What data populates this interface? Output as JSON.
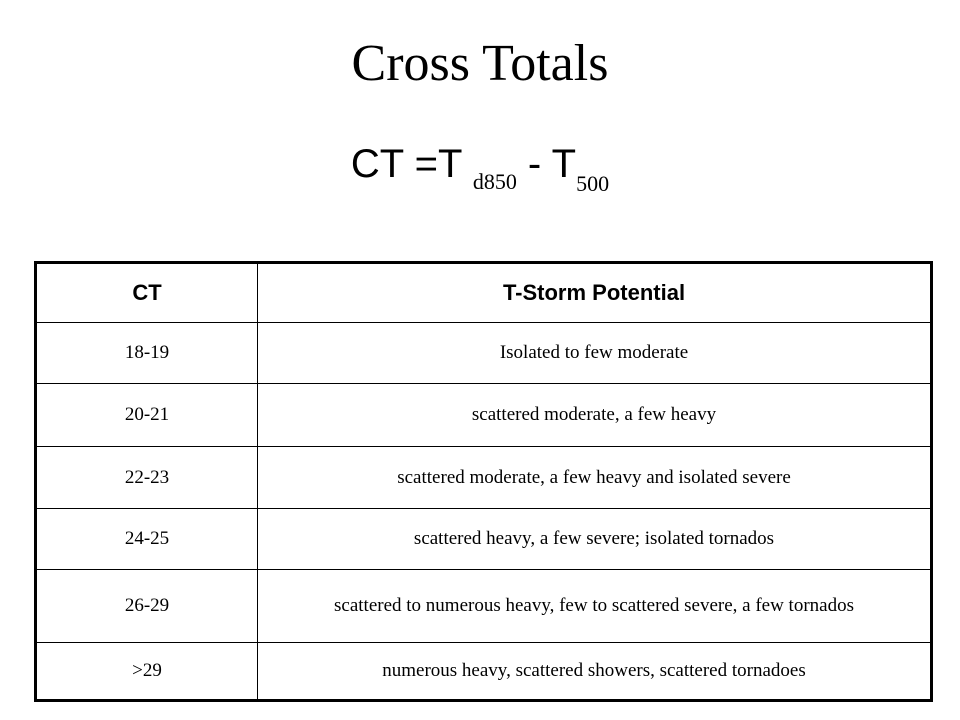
{
  "title": "Cross Totals",
  "formula": {
    "lhs": "CT =T ",
    "sub1": "d850",
    "op": " - T",
    "sub2": "500"
  },
  "table": {
    "headers": [
      "CT",
      "T-Storm Potential"
    ],
    "rows": [
      {
        "ct": "18-19",
        "potential": "Isolated to few moderate"
      },
      {
        "ct": "20-21",
        "potential": "scattered moderate, a few heavy"
      },
      {
        "ct": "22-23",
        "potential": "scattered moderate, a few heavy and isolated severe"
      },
      {
        "ct": "24-25",
        "potential": "scattered heavy, a few severe; isolated tornados"
      },
      {
        "ct": "26-29",
        "potential": "scattered to numerous heavy, few to scattered severe, a few tornados"
      },
      {
        "ct": ">29",
        "potential": "numerous heavy, scattered showers, scattered tornadoes"
      }
    ]
  }
}
